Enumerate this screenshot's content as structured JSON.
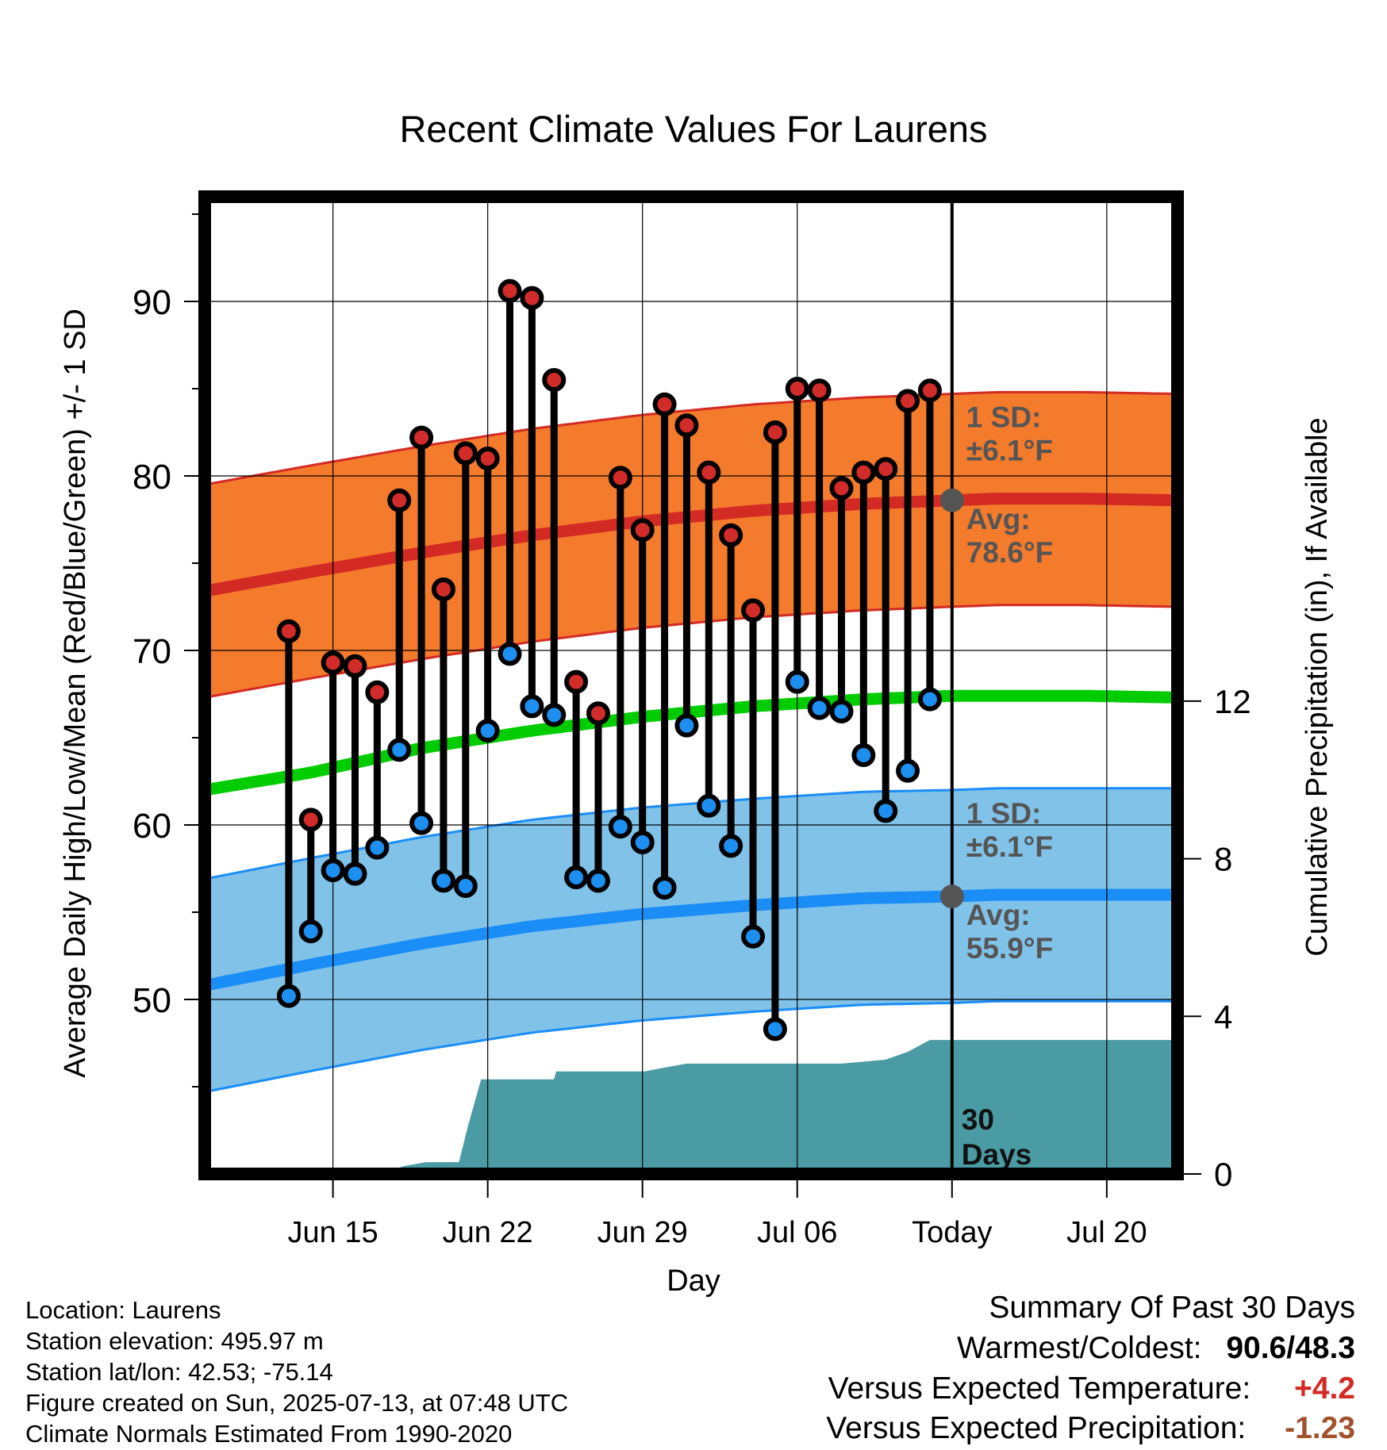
{
  "chart_data": {
    "type": "line",
    "title": "Recent Climate Values For Laurens",
    "xlabel": "Day",
    "ylabel": "Average Daily High/Low/Mean (Red/Blue/Green) +/- 1 SD",
    "y2label": "Cumulative Precipitation (in), If Available",
    "x_range_days": [
      -33.8,
      10.2
    ],
    "x_ticks": [
      {
        "day": -28,
        "label": "Jun 15"
      },
      {
        "day": -21,
        "label": "Jun 22"
      },
      {
        "day": -14,
        "label": "Jun 29"
      },
      {
        "day": -7,
        "label": "Jul 06"
      },
      {
        "day": 0,
        "label": "Today"
      },
      {
        "day": 7,
        "label": "Jul 20"
      }
    ],
    "ylim": [
      40,
      96
    ],
    "y_ticks": [
      50,
      60,
      70,
      80,
      90
    ],
    "y2lim": [
      0,
      24.8
    ],
    "y2_ticks": [
      0,
      4,
      8,
      12
    ],
    "grid": true,
    "normals": {
      "days": [
        -33.8,
        -29,
        -24,
        -19,
        -14,
        -9,
        -4,
        0,
        2,
        6,
        10.2
      ],
      "high_avg": [
        73.4,
        74.5,
        75.6,
        76.6,
        77.4,
        78.0,
        78.4,
        78.6,
        78.7,
        78.7,
        78.6
      ],
      "high_sd": 6.1,
      "mean_avg": [
        62.0,
        63.0,
        64.4,
        65.4,
        66.2,
        66.8,
        67.2,
        67.4,
        67.4,
        67.4,
        67.3
      ],
      "low_avg": [
        50.8,
        52.0,
        53.2,
        54.2,
        54.9,
        55.4,
        55.8,
        55.9,
        56.0,
        56.0,
        56.0
      ],
      "low_sd": 6.1
    },
    "series": [
      {
        "name": "High",
        "days": [
          -30,
          -29,
          -28,
          -27,
          -26,
          -25,
          -24,
          -23,
          -22,
          -21,
          -20,
          -19,
          -18,
          -17,
          -16,
          -15,
          -14,
          -13,
          -12,
          -11,
          -10,
          -9,
          -8,
          -7,
          -6,
          -5,
          -4,
          -3,
          -2,
          -1
        ],
        "values": [
          71.1,
          60.3,
          69.3,
          69.1,
          67.6,
          78.6,
          82.2,
          73.5,
          81.3,
          81.0,
          90.6,
          90.2,
          85.5,
          68.2,
          66.4,
          79.9,
          76.9,
          84.1,
          82.9,
          80.2,
          76.6,
          72.3,
          82.5,
          85.0,
          84.9,
          79.3,
          80.2,
          80.4,
          84.3,
          84.9
        ]
      },
      {
        "name": "Low",
        "days": [
          -30,
          -29,
          -28,
          -27,
          -26,
          -25,
          -24,
          -23,
          -22,
          -21,
          -20,
          -19,
          -18,
          -17,
          -16,
          -15,
          -14,
          -13,
          -12,
          -11,
          -10,
          -9,
          -8,
          -7,
          -6,
          -5,
          -4,
          -3,
          -2,
          -1
        ],
        "values": [
          50.2,
          53.9,
          57.4,
          57.2,
          58.7,
          64.3,
          60.1,
          56.8,
          56.5,
          65.4,
          69.8,
          66.8,
          66.3,
          57.0,
          56.8,
          59.9,
          59.0,
          56.4,
          65.7,
          61.1,
          58.8,
          53.6,
          48.3,
          68.2,
          66.7,
          66.5,
          64.0,
          60.8,
          63.1,
          67.2
        ]
      }
    ],
    "precip": {
      "days": [
        -29.2,
        -27,
        -25.8,
        -24.8,
        -23.8,
        -22.3,
        -21.9,
        -21.3,
        -20.8,
        -20,
        -18,
        -17.9,
        -17,
        -15,
        -13.9,
        -13,
        -12,
        -11,
        -5,
        -3,
        -2,
        -1,
        0,
        10.2
      ],
      "cum_in": [
        0,
        0,
        0,
        0.2,
        0.3,
        0.3,
        1.2,
        2.4,
        2.4,
        2.4,
        2.4,
        2.6,
        2.6,
        2.6,
        2.6,
        2.7,
        2.8,
        2.8,
        2.8,
        2.9,
        3.1,
        3.4,
        3.4,
        3.4
      ]
    },
    "annotations": {
      "high_sd_label": "1 SD:",
      "high_sd_value": "±6.1°F",
      "high_avg_label": "Avg:",
      "high_avg_value": "78.6°F",
      "low_sd_label": "1 SD:",
      "low_sd_value": "±6.1°F",
      "low_avg_label": "Avg:",
      "low_avg_value": "55.9°F",
      "days_value": "30",
      "days_label": "Days"
    },
    "colors": {
      "high_band": "#f47a2c",
      "high_line": "#d42a24",
      "mean_line": "#00cc00",
      "low_band": "#81c2e8",
      "low_line": "#1a8df7",
      "precip": "#4a9ba3",
      "high_marker": "#d12b2a",
      "low_marker": "#1d8ff0",
      "avg_marker": "#555555"
    }
  },
  "footer": {
    "location": "Location: Laurens",
    "elevation": "Station elevation: 495.97 m",
    "latlon": "Station lat/lon: 42.53; -75.14",
    "created": "Figure created on Sun, 2025-07-13, at 07:48 UTC",
    "normals": "Climate Normals Estimated From 1990-2020"
  },
  "summary": {
    "heading": "Summary Of Past 30 Days",
    "warm_cold_label": "Warmest/Coldest:",
    "warm_cold_value": "90.6/48.3",
    "temp_label": "Versus Expected Temperature:",
    "temp_value": "+4.2",
    "temp_color": "#d42a24",
    "precip_label": "Versus Expected Precipitation:",
    "precip_value": "-1.23",
    "precip_color": "#a0522d"
  }
}
